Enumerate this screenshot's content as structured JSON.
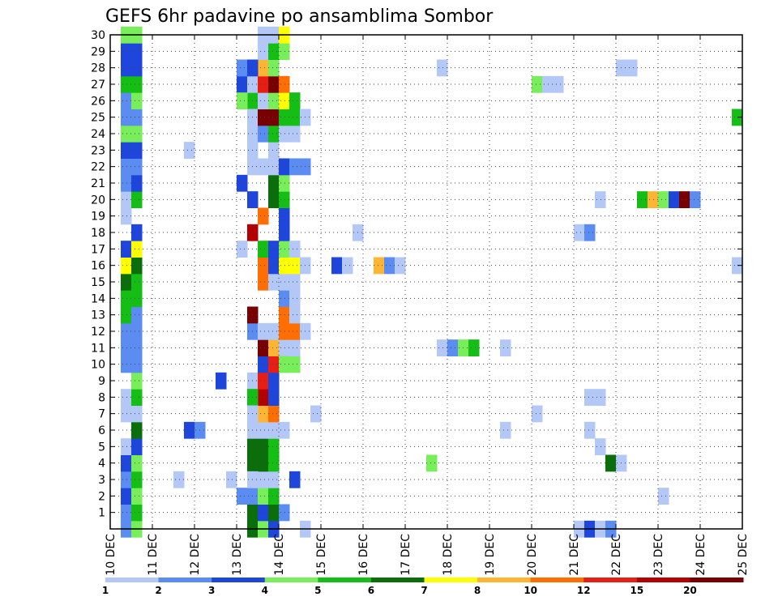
{
  "chart_data": {
    "type": "heatmap",
    "title": "GEFS 6hr padavine po ansamblima Sombor",
    "xlabel": "",
    "ylabel": "",
    "x_ticks": [
      "10 DEC",
      "11 DEC",
      "12 DEC",
      "13 DEC",
      "14 DEC",
      "15 DEC",
      "16 DEC",
      "17 DEC",
      "18 DEC",
      "19 DEC",
      "20 DEC",
      "21 DEC",
      "22 DEC",
      "23 DEC",
      "24 DEC",
      "25 DEC"
    ],
    "x_range_steps": [
      0,
      60
    ],
    "x_step_hours": 6,
    "y_ticks": [
      1,
      2,
      3,
      4,
      5,
      6,
      7,
      8,
      9,
      10,
      11,
      12,
      13,
      14,
      15,
      16,
      17,
      18,
      19,
      20,
      21,
      22,
      23,
      24,
      25,
      26,
      27,
      28,
      29,
      30
    ],
    "y_range": [
      0,
      30
    ],
    "grid": true,
    "legend_levels": [
      "1",
      "2",
      "3",
      "4",
      "5",
      "6",
      "7",
      "8",
      "10",
      "12",
      "15",
      "20"
    ],
    "legend_colors": [
      "#b4c8f8",
      "#5a8cf2",
      "#1e46dc",
      "#78ee5a",
      "#14be14",
      "#0a6e0a",
      "#ffff00",
      "#ffb432",
      "#ff6e00",
      "#e61e14",
      "#b40000",
      "#780000"
    ],
    "cells": [
      [
        1,
        0,
        2
      ],
      [
        1,
        1,
        2
      ],
      [
        1,
        2,
        3
      ],
      [
        1,
        3,
        2
      ],
      [
        1,
        4,
        3
      ],
      [
        1,
        5,
        1
      ],
      [
        1,
        7,
        1
      ],
      [
        1,
        8,
        1
      ],
      [
        1,
        10,
        2
      ],
      [
        1,
        11,
        2
      ],
      [
        1,
        12,
        2
      ],
      [
        1,
        13,
        5
      ],
      [
        1,
        14,
        5
      ],
      [
        1,
        15,
        6
      ],
      [
        1,
        16,
        7
      ],
      [
        1,
        17,
        3
      ],
      [
        1,
        19,
        1
      ],
      [
        1,
        20,
        1
      ],
      [
        1,
        21,
        2
      ],
      [
        1,
        22,
        2
      ],
      [
        1,
        23,
        3
      ],
      [
        1,
        24,
        4
      ],
      [
        1,
        25,
        2
      ],
      [
        1,
        26,
        2
      ],
      [
        1,
        27,
        5
      ],
      [
        1,
        28,
        3
      ],
      [
        1,
        29,
        3
      ],
      [
        1,
        30,
        4
      ],
      [
        2,
        0,
        4
      ],
      [
        2,
        1,
        5
      ],
      [
        2,
        2,
        4
      ],
      [
        2,
        3,
        5
      ],
      [
        2,
        4,
        4
      ],
      [
        2,
        5,
        3
      ],
      [
        2,
        6,
        6
      ],
      [
        2,
        7,
        1
      ],
      [
        2,
        8,
        5
      ],
      [
        2,
        9,
        4
      ],
      [
        2,
        10,
        2
      ],
      [
        2,
        11,
        2
      ],
      [
        2,
        12,
        2
      ],
      [
        2,
        13,
        2
      ],
      [
        2,
        14,
        5
      ],
      [
        2,
        15,
        5
      ],
      [
        2,
        16,
        6
      ],
      [
        2,
        17,
        7
      ],
      [
        2,
        18,
        3
      ],
      [
        2,
        20,
        5
      ],
      [
        2,
        21,
        3
      ],
      [
        2,
        22,
        2
      ],
      [
        2,
        23,
        3
      ],
      [
        2,
        24,
        4
      ],
      [
        2,
        25,
        2
      ],
      [
        2,
        26,
        4
      ],
      [
        2,
        27,
        5
      ],
      [
        2,
        28,
        3
      ],
      [
        2,
        29,
        3
      ],
      [
        2,
        30,
        4
      ],
      [
        6,
        3,
        1
      ],
      [
        7,
        6,
        3
      ],
      [
        8,
        6,
        2
      ],
      [
        7,
        23,
        1
      ],
      [
        10,
        9,
        3
      ],
      [
        11,
        3,
        1
      ],
      [
        12,
        2,
        2
      ],
      [
        12,
        27,
        3
      ],
      [
        13,
        26,
        5
      ],
      [
        12,
        28,
        2
      ],
      [
        12,
        21,
        3
      ],
      [
        13,
        20,
        3
      ],
      [
        12,
        17,
        1
      ],
      [
        13,
        0,
        6
      ],
      [
        13,
        1,
        6
      ],
      [
        13,
        4,
        6
      ],
      [
        13,
        5,
        6
      ],
      [
        13,
        6,
        1
      ],
      [
        13,
        9,
        1
      ],
      [
        13,
        12,
        2
      ],
      [
        13,
        13,
        12
      ],
      [
        13,
        22,
        1
      ],
      [
        13,
        23,
        1
      ],
      [
        13,
        24,
        1
      ],
      [
        13,
        25,
        1
      ],
      [
        13,
        27,
        1
      ],
      [
        13,
        18,
        11
      ],
      [
        13,
        2,
        2
      ],
      [
        14,
        0,
        4
      ],
      [
        14,
        1,
        3
      ],
      [
        14,
        2,
        4
      ],
      [
        14,
        3,
        1
      ],
      [
        14,
        4,
        6
      ],
      [
        14,
        5,
        6
      ],
      [
        14,
        6,
        1
      ],
      [
        14,
        7,
        8
      ],
      [
        14,
        8,
        11
      ],
      [
        14,
        9,
        10
      ],
      [
        14,
        10,
        3
      ],
      [
        14,
        11,
        12
      ],
      [
        14,
        12,
        1
      ],
      [
        14,
        13,
        13
      ],
      [
        14,
        14,
        13
      ],
      [
        14,
        15,
        9
      ],
      [
        14,
        16,
        9
      ],
      [
        14,
        17,
        5
      ],
      [
        14,
        18,
        13
      ],
      [
        14,
        19,
        9
      ],
      [
        14,
        20,
        13
      ],
      [
        14,
        21,
        13
      ],
      [
        14,
        22,
        1
      ],
      [
        14,
        24,
        2
      ],
      [
        14,
        25,
        12
      ],
      [
        14,
        26,
        1
      ],
      [
        14,
        27,
        10
      ],
      [
        14,
        28,
        8
      ],
      [
        14,
        29,
        1
      ],
      [
        14,
        30,
        1
      ],
      [
        13,
        3,
        1
      ],
      [
        13,
        28,
        3
      ],
      [
        13,
        8,
        5
      ],
      [
        13,
        7,
        1
      ],
      [
        12,
        26,
        4
      ],
      [
        15,
        0,
        3
      ],
      [
        15,
        1,
        6
      ],
      [
        15,
        2,
        5
      ],
      [
        15,
        3,
        1
      ],
      [
        15,
        4,
        5
      ],
      [
        15,
        5,
        5
      ],
      [
        15,
        6,
        1
      ],
      [
        15,
        7,
        9
      ],
      [
        15,
        8,
        3
      ],
      [
        15,
        9,
        3
      ],
      [
        15,
        10,
        10
      ],
      [
        15,
        11,
        8
      ],
      [
        15,
        12,
        1
      ],
      [
        15,
        13,
        14
      ],
      [
        15,
        14,
        13
      ],
      [
        15,
        15,
        1
      ],
      [
        15,
        16,
        3
      ],
      [
        15,
        17,
        3
      ],
      [
        15,
        18,
        13
      ],
      [
        15,
        20,
        6
      ],
      [
        15,
        21,
        6
      ],
      [
        15,
        22,
        1
      ],
      [
        15,
        23,
        1
      ],
      [
        15,
        24,
        5
      ],
      [
        15,
        25,
        12
      ],
      [
        15,
        26,
        4
      ],
      [
        15,
        27,
        12
      ],
      [
        15,
        28,
        4
      ],
      [
        15,
        29,
        5
      ],
      [
        15,
        30,
        1
      ],
      [
        16,
        1,
        2
      ],
      [
        16,
        6,
        1
      ],
      [
        16,
        10,
        1
      ],
      [
        16,
        11,
        1
      ],
      [
        16,
        12,
        9
      ],
      [
        16,
        13,
        9
      ],
      [
        16,
        14,
        2
      ],
      [
        16,
        15,
        1
      ],
      [
        16,
        16,
        7
      ],
      [
        16,
        17,
        4
      ],
      [
        16,
        18,
        3
      ],
      [
        16,
        19,
        3
      ],
      [
        16,
        20,
        5
      ],
      [
        16,
        21,
        4
      ],
      [
        16,
        22,
        3
      ],
      [
        16,
        24,
        1
      ],
      [
        16,
        25,
        5
      ],
      [
        16,
        26,
        7
      ],
      [
        16,
        27,
        9
      ],
      [
        16,
        29,
        4
      ],
      [
        16,
        30,
        7
      ],
      [
        16,
        10,
        4
      ],
      [
        17,
        3,
        3
      ],
      [
        17,
        10,
        4
      ],
      [
        17,
        11,
        1
      ],
      [
        17,
        12,
        9
      ],
      [
        17,
        13,
        1
      ],
      [
        17,
        14,
        1
      ],
      [
        17,
        15,
        1
      ],
      [
        17,
        16,
        7
      ],
      [
        17,
        17,
        1
      ],
      [
        17,
        22,
        2
      ],
      [
        17,
        24,
        1
      ],
      [
        17,
        25,
        5
      ],
      [
        17,
        26,
        5
      ],
      [
        18,
        12,
        1
      ],
      [
        18,
        16,
        1
      ],
      [
        18,
        22,
        2
      ],
      [
        18,
        25,
        1
      ],
      [
        18,
        0,
        1
      ],
      [
        19,
        7,
        1
      ],
      [
        19,
        7,
        1
      ],
      [
        21,
        16,
        3
      ],
      [
        22,
        16,
        1
      ],
      [
        23,
        18,
        1
      ],
      [
        25,
        16,
        8
      ],
      [
        26,
        16,
        2
      ],
      [
        27,
        16,
        1
      ],
      [
        30,
        4,
        4
      ],
      [
        31,
        11,
        1
      ],
      [
        32,
        11,
        2
      ],
      [
        33,
        11,
        4
      ],
      [
        34,
        11,
        5
      ],
      [
        31,
        28,
        1
      ],
      [
        37,
        11,
        1
      ],
      [
        37,
        6,
        1
      ],
      [
        40,
        7,
        1
      ],
      [
        40,
        27,
        4
      ],
      [
        41,
        27,
        1
      ],
      [
        42,
        27,
        1
      ],
      [
        44,
        18,
        1
      ],
      [
        45,
        18,
        2
      ],
      [
        44,
        0,
        1
      ],
      [
        45,
        0,
        3
      ],
      [
        46,
        0,
        1
      ],
      [
        47,
        0,
        2
      ],
      [
        45,
        8,
        1
      ],
      [
        46,
        8,
        1
      ],
      [
        45,
        6,
        1
      ],
      [
        46,
        20,
        1
      ],
      [
        46,
        5,
        1
      ],
      [
        47,
        4,
        6
      ],
      [
        48,
        4,
        1
      ],
      [
        48,
        28,
        1
      ],
      [
        49,
        28,
        1
      ],
      [
        50,
        20,
        5
      ],
      [
        51,
        20,
        8
      ],
      [
        52,
        20,
        4
      ],
      [
        53,
        20,
        3
      ],
      [
        54,
        20,
        12
      ],
      [
        55,
        20,
        2
      ],
      [
        52,
        2,
        1
      ],
      [
        59,
        25,
        5
      ],
      [
        59,
        16,
        1
      ]
    ]
  }
}
